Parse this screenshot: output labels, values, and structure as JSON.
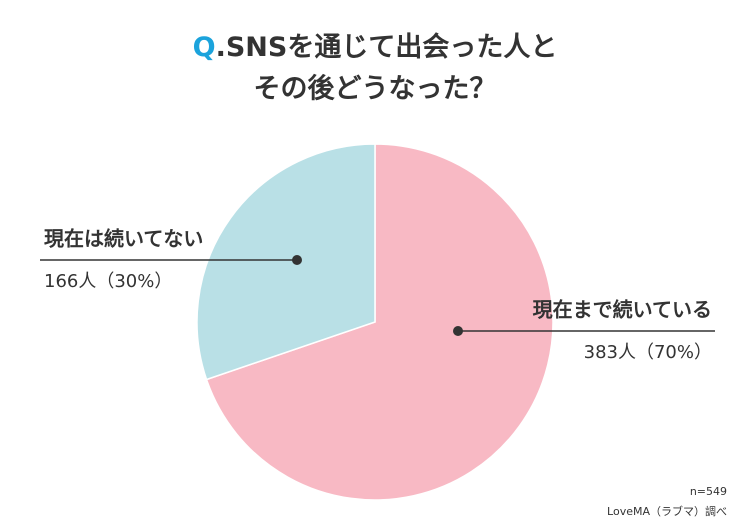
{
  "chart_data": {
    "type": "pie",
    "title_prefix": "Q",
    "title": [
      ".SNSを通じて出会った人と",
      "その後どうなった？"
    ],
    "categories": [
      "現在まで続いている",
      "現在は続いてない"
    ],
    "values": [
      383,
      166
    ],
    "value_labels": [
      "383人（70%）",
      "166人（30%）"
    ],
    "colors": [
      "#f8b9c4",
      "#b9e0e6"
    ],
    "title_prefix_color": "#1ba3dc",
    "note": "n=549",
    "source": "LoveMA（ラブマ）調べ"
  }
}
